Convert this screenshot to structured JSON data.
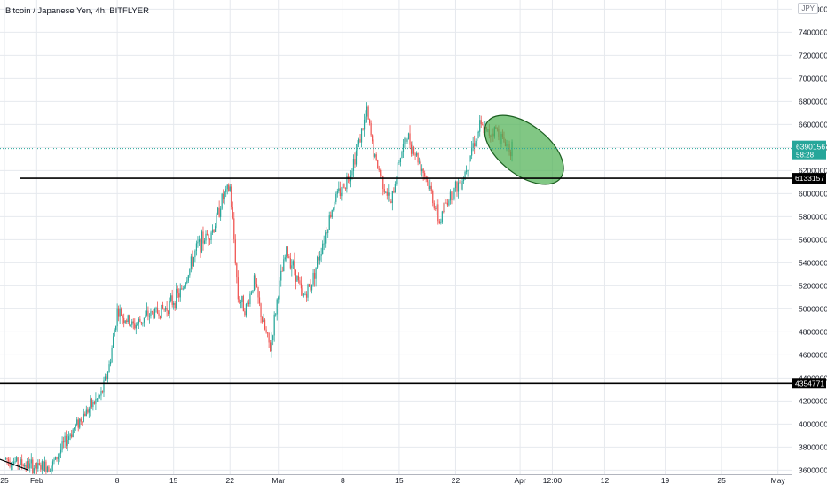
{
  "chart_data": {
    "type": "candlestick",
    "title": "Bitcoin / Japanese Yen, 4h, BITFLYER",
    "currency": "JPY",
    "ylim": [
      3580000,
      7680000
    ],
    "y_ticks": [
      3600000,
      3800000,
      4000000,
      4200000,
      4400000,
      4600000,
      4800000,
      5000000,
      5200000,
      5400000,
      5600000,
      5800000,
      6000000,
      6200000,
      6400000,
      6600000,
      6800000,
      7000000,
      7200000,
      7400000,
      7600000
    ],
    "x_tick_labels": [
      "25",
      "Feb",
      "8",
      "15",
      "22",
      "Mar",
      "8",
      "15",
      "22",
      "Apr",
      "12:00",
      "12",
      "19",
      "25",
      "May"
    ],
    "series_anchor_closes": [
      {
        "day": 0,
        "close": 3700000
      },
      {
        "day": 4,
        "close": 3620000
      },
      {
        "day": 6,
        "close": 3650000
      },
      {
        "day": 8,
        "close": 3900000
      },
      {
        "day": 10,
        "close": 4100000
      },
      {
        "day": 12,
        "close": 4250000
      },
      {
        "day": 13,
        "close": 4500000
      },
      {
        "day": 14,
        "close": 4980000
      },
      {
        "day": 16,
        "close": 4850000
      },
      {
        "day": 18,
        "close": 4950000
      },
      {
        "day": 20,
        "close": 5000000
      },
      {
        "day": 22,
        "close": 5150000
      },
      {
        "day": 24,
        "close": 5550000
      },
      {
        "day": 26,
        "close": 5700000
      },
      {
        "day": 27,
        "close": 5950000
      },
      {
        "day": 28,
        "close": 6050000
      },
      {
        "day": 28.5,
        "close": 5600000
      },
      {
        "day": 29,
        "close": 5100000
      },
      {
        "day": 30,
        "close": 5000000
      },
      {
        "day": 31,
        "close": 5250000
      },
      {
        "day": 32,
        "close": 4900000
      },
      {
        "day": 33,
        "close": 4650000
      },
      {
        "day": 34,
        "close": 5150000
      },
      {
        "day": 35,
        "close": 5500000
      },
      {
        "day": 36,
        "close": 5350000
      },
      {
        "day": 37,
        "close": 5100000
      },
      {
        "day": 38,
        "close": 5200000
      },
      {
        "day": 39,
        "close": 5450000
      },
      {
        "day": 40,
        "close": 5700000
      },
      {
        "day": 41,
        "close": 5950000
      },
      {
        "day": 42,
        "close": 6050000
      },
      {
        "day": 43,
        "close": 6200000
      },
      {
        "day": 44,
        "close": 6450000
      },
      {
        "day": 45,
        "close": 6700000
      },
      {
        "day": 46,
        "close": 6300000
      },
      {
        "day": 47,
        "close": 6100000
      },
      {
        "day": 48,
        "close": 5900000
      },
      {
        "day": 49,
        "close": 6300000
      },
      {
        "day": 50,
        "close": 6500000
      },
      {
        "day": 51,
        "close": 6350000
      },
      {
        "day": 52,
        "close": 6200000
      },
      {
        "day": 53,
        "close": 6000000
      },
      {
        "day": 54,
        "close": 5750000
      },
      {
        "day": 55,
        "close": 5950000
      },
      {
        "day": 56,
        "close": 6050000
      },
      {
        "day": 57,
        "close": 6150000
      },
      {
        "day": 58,
        "close": 6400000
      },
      {
        "day": 59,
        "close": 6580000
      },
      {
        "day": 60,
        "close": 6520000
      },
      {
        "day": 61,
        "close": 6560000
      },
      {
        "day": 62,
        "close": 6450000
      },
      {
        "day": 63,
        "close": 6390156
      }
    ],
    "horizontal_lines": [
      {
        "price": 6133157,
        "label": "6133157",
        "color": "#000000"
      },
      {
        "price": 4354771,
        "label": "4354771",
        "color": "#000000"
      }
    ],
    "last_price": {
      "price": 6390156,
      "label": "6390156",
      "timer": "58:28",
      "color": "#26a69a"
    },
    "annotations": [
      {
        "type": "ellipse",
        "fill": "#4caf50",
        "border": "#1b5e20",
        "center_day": 64.5,
        "center_price": 6380000
      },
      {
        "type": "trendline",
        "color": "#000000",
        "from": {
          "day": -3,
          "price": 3760000
        },
        "to": {
          "day": 3,
          "price": 3600000
        }
      }
    ],
    "colors": {
      "up": "#26a69a",
      "down": "#ef5350",
      "grid": "#e6e9ee",
      "axis_text": "#131722"
    },
    "grid": true
  }
}
